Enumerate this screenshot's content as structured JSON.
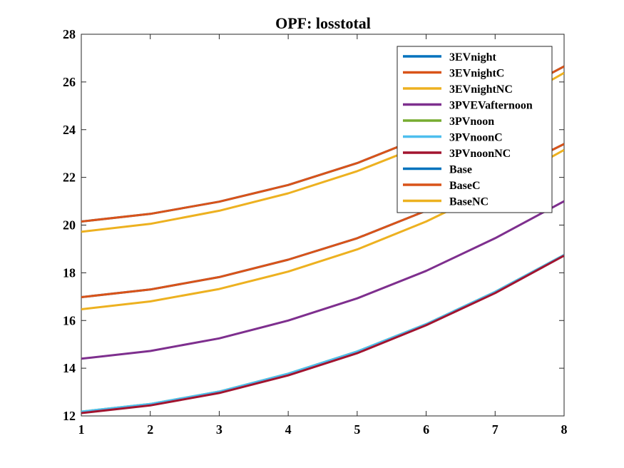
{
  "chart_data": {
    "type": "line",
    "title": "OPF: losstotal",
    "xlabel": "",
    "ylabel": "",
    "xlim": [
      1,
      8
    ],
    "ylim": [
      12,
      28
    ],
    "xticks": [
      1,
      2,
      3,
      4,
      5,
      6,
      7,
      8
    ],
    "yticks": [
      12,
      14,
      16,
      18,
      20,
      22,
      24,
      26,
      28
    ],
    "x": [
      1,
      2,
      3,
      4,
      5,
      6,
      7,
      8
    ],
    "legend_position": "top-right",
    "grid": false,
    "series": [
      {
        "name": "3EVnight",
        "color": "#0072BD",
        "values": [
          20.15,
          20.47,
          20.98,
          21.68,
          22.6,
          23.75,
          25.12,
          26.65
        ]
      },
      {
        "name": "3EVnightC",
        "color": "#D95319",
        "values": [
          20.15,
          20.47,
          20.98,
          21.68,
          22.6,
          23.75,
          25.12,
          26.65
        ]
      },
      {
        "name": "3EVnightNC",
        "color": "#EDB120",
        "values": [
          19.72,
          20.05,
          20.6,
          21.33,
          22.26,
          23.4,
          24.75,
          26.38
        ]
      },
      {
        "name": "3PVEVafternoon",
        "color": "#7E2F8E",
        "values": [
          14.4,
          14.72,
          15.25,
          16.0,
          16.93,
          18.08,
          19.45,
          21.0
        ]
      },
      {
        "name": "3PVnoon",
        "color": "#77AC30",
        "values": [
          12.18,
          12.5,
          13.02,
          13.77,
          14.7,
          15.85,
          17.2,
          18.75
        ]
      },
      {
        "name": "3PVnoonC",
        "color": "#4DBEEE",
        "values": [
          12.18,
          12.5,
          13.02,
          13.77,
          14.7,
          15.85,
          17.2,
          18.75
        ]
      },
      {
        "name": "3PVnoonNC",
        "color": "#A2142F",
        "values": [
          12.12,
          12.44,
          12.96,
          13.7,
          14.63,
          15.8,
          17.15,
          18.72
        ]
      },
      {
        "name": "Base",
        "color": "#0072BD",
        "values": [
          16.98,
          17.3,
          17.82,
          18.55,
          19.45,
          20.6,
          21.95,
          23.4
        ]
      },
      {
        "name": "BaseC",
        "color": "#D95319",
        "values": [
          16.98,
          17.3,
          17.82,
          18.55,
          19.45,
          20.6,
          21.95,
          23.4
        ]
      },
      {
        "name": "BaseNC",
        "color": "#EDB120",
        "values": [
          16.47,
          16.8,
          17.32,
          18.05,
          18.98,
          20.15,
          21.55,
          23.15
        ]
      }
    ]
  }
}
